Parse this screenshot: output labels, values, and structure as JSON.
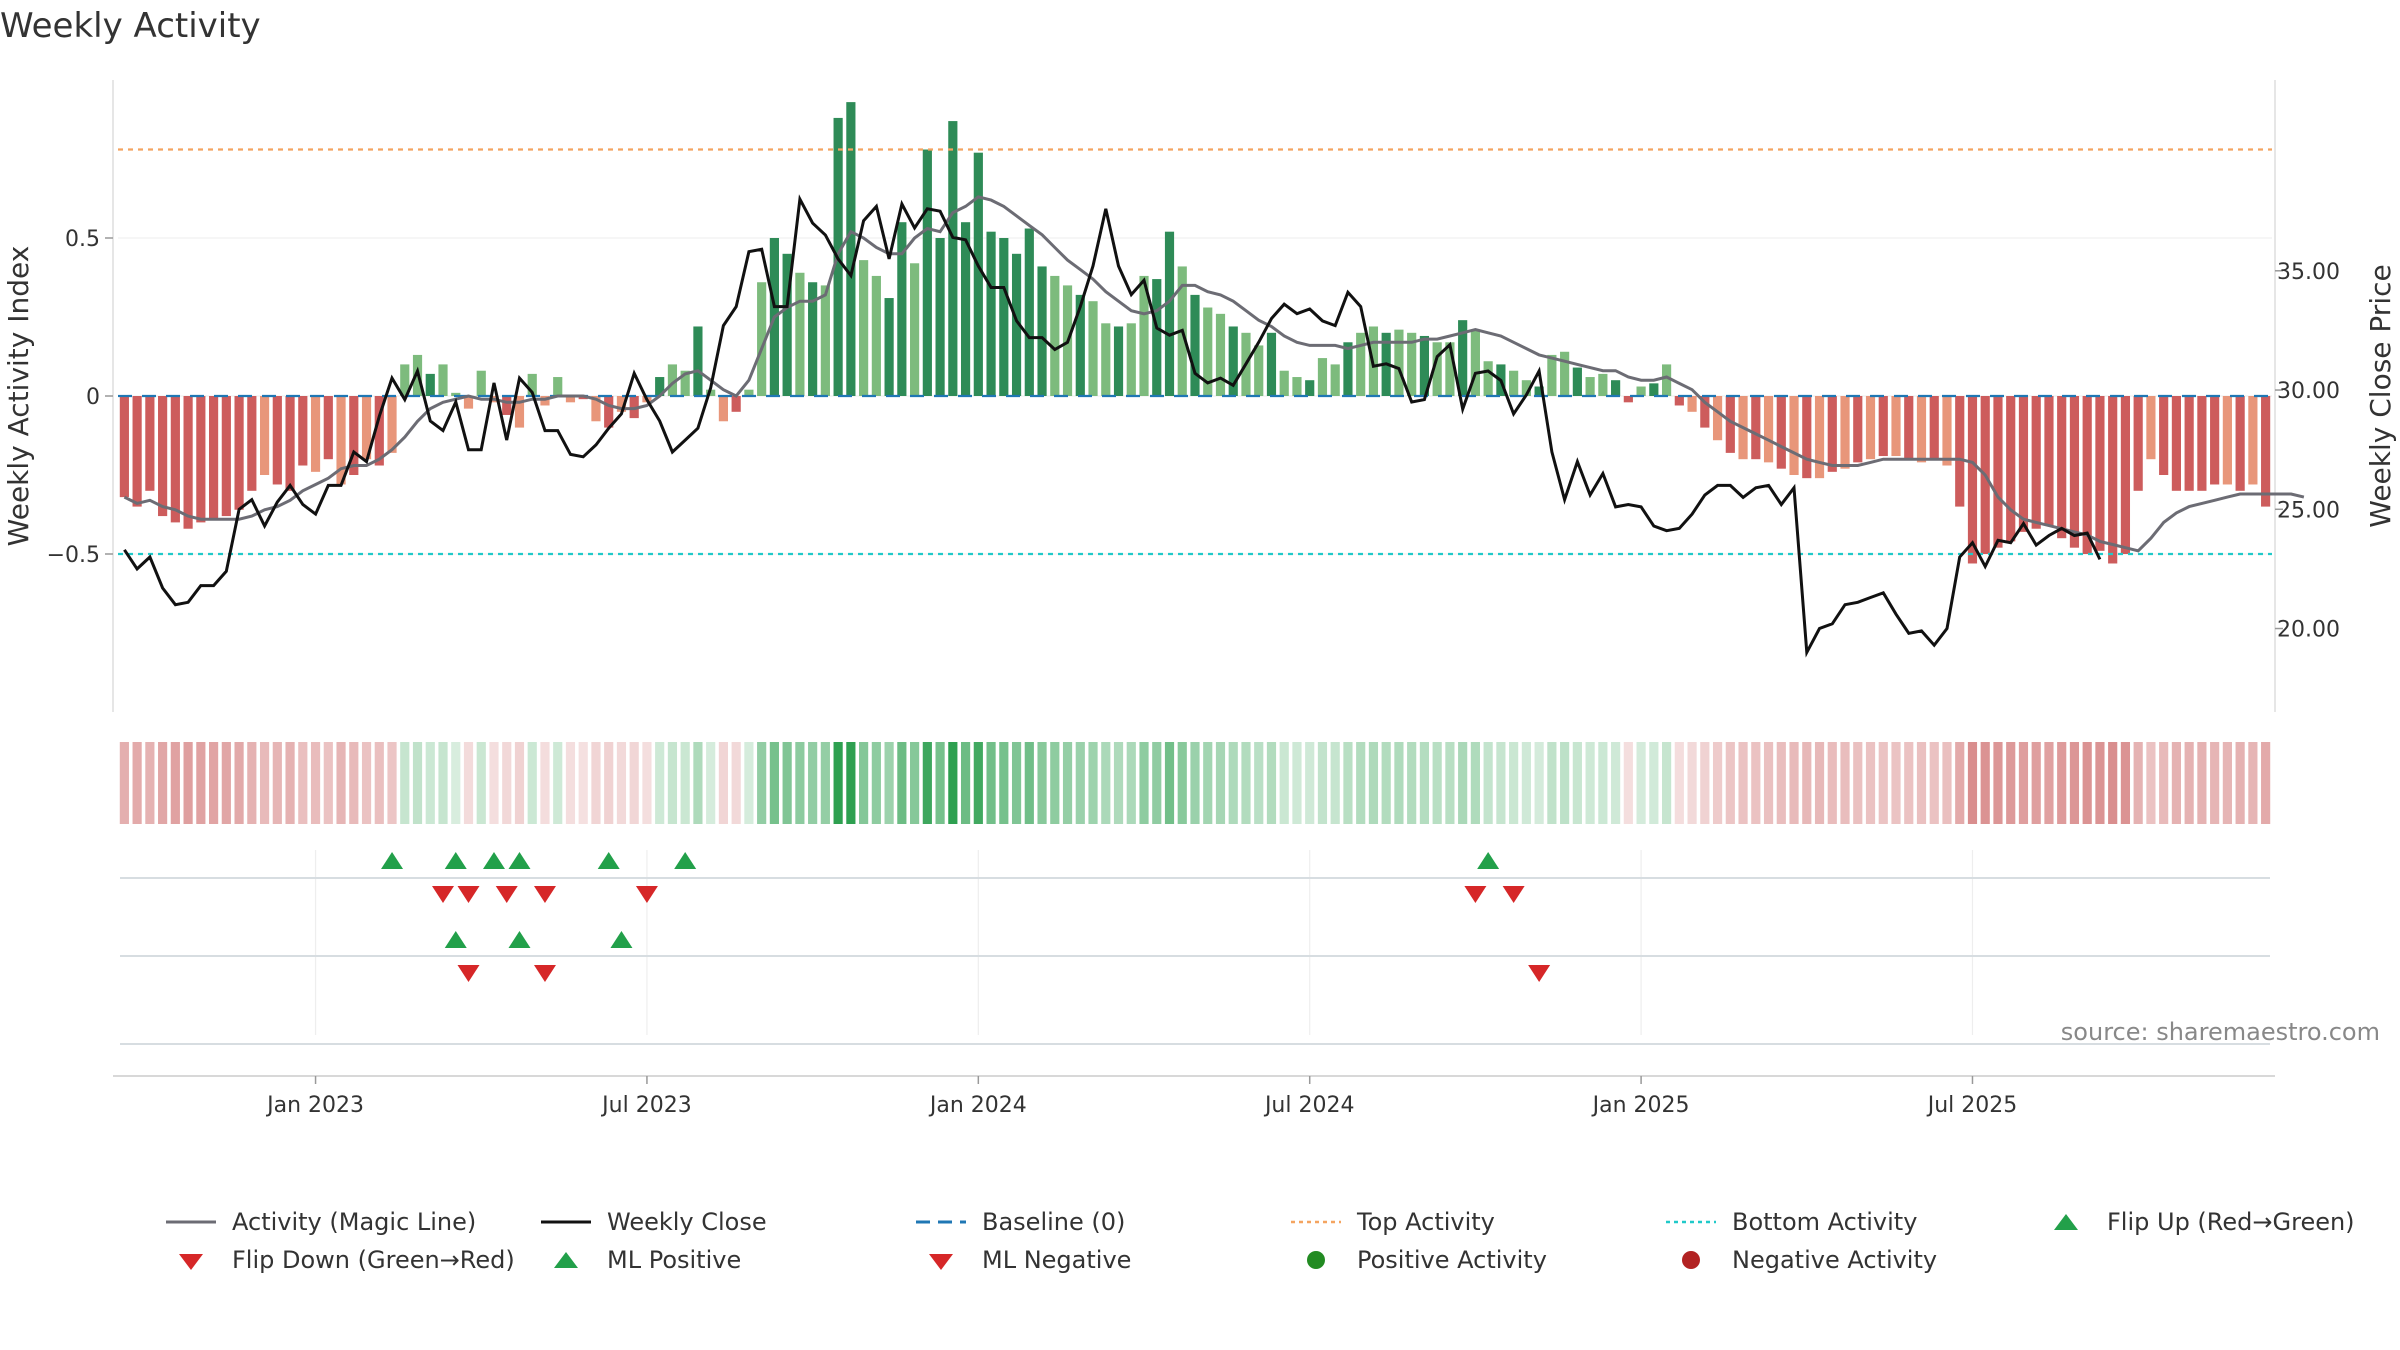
{
  "title": "Weekly Activity",
  "source": "source: sharemaestro.com",
  "chart_data": {
    "type": "bar",
    "title": "Weekly Activity",
    "ylabel_left": "Weekly Activity Index",
    "ylabel_right": "Weekly Close Price",
    "left_axis": {
      "ylim": [
        -1.0,
        1.0
      ],
      "ticks": [
        -0.5,
        0,
        0.5
      ],
      "tick_labels": [
        "−0.5",
        "0",
        "0.5"
      ]
    },
    "right_axis": {
      "ylim": [
        16.5,
        43.0
      ],
      "ticks": [
        20,
        25,
        30,
        35
      ],
      "tick_labels": [
        "20.00",
        "25.00",
        "30.00",
        "35.00"
      ]
    },
    "x_ticks": [
      {
        "label": "Jan 2023",
        "week": 15
      },
      {
        "label": "Jul 2023",
        "week": 41
      },
      {
        "label": "Jan 2024",
        "week": 67
      },
      {
        "label": "Jul 2024",
        "week": 93
      },
      {
        "label": "Jan 2025",
        "week": 119
      },
      {
        "label": "Jul 2025",
        "week": 145
      }
    ],
    "top_activity": 0.78,
    "bottom_activity": -0.5,
    "baseline": 0,
    "activity": [
      -0.32,
      -0.35,
      -0.3,
      -0.38,
      -0.4,
      -0.42,
      -0.4,
      -0.39,
      -0.38,
      -0.36,
      -0.3,
      -0.25,
      -0.28,
      -0.3,
      -0.22,
      -0.24,
      -0.2,
      -0.28,
      -0.25,
      -0.2,
      -0.22,
      -0.18,
      0.1,
      0.13,
      0.07,
      0.1,
      0.01,
      -0.04,
      0.08,
      -0.02,
      -0.06,
      -0.1,
      0.07,
      -0.03,
      0.06,
      -0.02,
      -0.01,
      -0.08,
      -0.1,
      -0.05,
      -0.07,
      -0.02,
      0.06,
      0.1,
      0.08,
      0.22,
      0.02,
      -0.08,
      -0.05,
      0.02,
      0.36,
      0.5,
      0.45,
      0.39,
      0.36,
      0.35,
      0.88,
      0.93,
      0.43,
      0.38,
      0.31,
      0.55,
      0.42,
      0.78,
      0.5,
      0.87,
      0.55,
      0.77,
      0.52,
      0.5,
      0.45,
      0.53,
      0.41,
      0.38,
      0.35,
      0.32,
      0.3,
      0.23,
      0.22,
      0.23,
      0.38,
      0.37,
      0.52,
      0.41,
      0.32,
      0.28,
      0.26,
      0.22,
      0.2,
      0.16,
      0.2,
      0.08,
      0.06,
      0.05,
      0.12,
      0.1,
      0.17,
      0.2,
      0.22,
      0.2,
      0.21,
      0.2,
      0.19,
      0.17,
      0.17,
      0.24,
      0.21,
      0.11,
      0.1,
      0.08,
      0.05,
      0.03,
      0.13,
      0.14,
      0.09,
      0.06,
      0.07,
      0.05,
      -0.02,
      0.03,
      0.04,
      0.1,
      -0.03,
      -0.05,
      -0.1,
      -0.14,
      -0.18,
      -0.2,
      -0.2,
      -0.21,
      -0.23,
      -0.25,
      -0.26,
      -0.26,
      -0.24,
      -0.23,
      -0.21,
      -0.2,
      -0.19,
      -0.19,
      -0.2,
      -0.21,
      -0.2,
      -0.22,
      -0.35,
      -0.53,
      -0.5,
      -0.48,
      -0.46,
      -0.43,
      -0.42,
      -0.41,
      -0.45,
      -0.48,
      -0.5,
      -0.49,
      -0.53,
      -0.5,
      -0.3,
      -0.2,
      -0.25,
      -0.3,
      -0.3,
      -0.3,
      -0.28,
      -0.28,
      -0.3,
      -0.28,
      -0.35
    ],
    "magic_line": [
      -0.32,
      -0.34,
      -0.33,
      -0.35,
      -0.36,
      -0.38,
      -0.39,
      -0.39,
      -0.39,
      -0.39,
      -0.38,
      -0.36,
      -0.35,
      -0.33,
      -0.3,
      -0.28,
      -0.26,
      -0.23,
      -0.22,
      -0.22,
      -0.2,
      -0.17,
      -0.13,
      -0.08,
      -0.04,
      -0.02,
      -0.01,
      0.0,
      -0.01,
      -0.01,
      -0.02,
      -0.02,
      -0.01,
      -0.01,
      0.0,
      0.0,
      0.0,
      -0.01,
      -0.03,
      -0.04,
      -0.04,
      -0.03,
      0.0,
      0.04,
      0.07,
      0.08,
      0.05,
      0.02,
      0.0,
      0.05,
      0.15,
      0.25,
      0.28,
      0.3,
      0.3,
      0.32,
      0.45,
      0.52,
      0.5,
      0.47,
      0.45,
      0.45,
      0.5,
      0.53,
      0.52,
      0.58,
      0.6,
      0.63,
      0.62,
      0.6,
      0.57,
      0.54,
      0.51,
      0.47,
      0.43,
      0.4,
      0.37,
      0.33,
      0.3,
      0.27,
      0.26,
      0.27,
      0.3,
      0.35,
      0.35,
      0.33,
      0.32,
      0.3,
      0.27,
      0.24,
      0.22,
      0.19,
      0.17,
      0.16,
      0.16,
      0.16,
      0.15,
      0.16,
      0.17,
      0.17,
      0.17,
      0.17,
      0.18,
      0.18,
      0.19,
      0.2,
      0.21,
      0.2,
      0.19,
      0.17,
      0.15,
      0.13,
      0.12,
      0.11,
      0.1,
      0.09,
      0.08,
      0.08,
      0.06,
      0.05,
      0.05,
      0.06,
      0.04,
      0.02,
      -0.02,
      -0.05,
      -0.08,
      -0.1,
      -0.12,
      -0.14,
      -0.16,
      -0.18,
      -0.2,
      -0.21,
      -0.22,
      -0.22,
      -0.22,
      -0.21,
      -0.2,
      -0.2,
      -0.2,
      -0.2,
      -0.2,
      -0.2,
      -0.2,
      -0.21,
      -0.25,
      -0.32,
      -0.36,
      -0.39,
      -0.4,
      -0.41,
      -0.42,
      -0.43,
      -0.44,
      -0.46,
      -0.47,
      -0.48,
      -0.49,
      -0.45,
      -0.4,
      -0.37,
      -0.35,
      -0.34,
      -0.33,
      -0.32,
      -0.31,
      -0.31,
      -0.31,
      -0.31,
      -0.31,
      -0.32
    ],
    "weekly_close": [
      23.3,
      22.5,
      23.0,
      21.7,
      21.0,
      21.1,
      21.8,
      21.8,
      22.4,
      25.0,
      25.4,
      24.3,
      25.3,
      26.0,
      25.2,
      24.8,
      26.0,
      26.0,
      27.4,
      27.0,
      28.9,
      30.5,
      29.6,
      30.8,
      28.7,
      28.3,
      29.5,
      27.5,
      27.5,
      30.3,
      27.9,
      30.5,
      29.9,
      28.3,
      28.3,
      27.3,
      27.2,
      27.7,
      28.4,
      29.0,
      30.7,
      29.6,
      28.7,
      27.4,
      27.9,
      28.4,
      30.1,
      32.7,
      33.5,
      35.8,
      35.9,
      33.5,
      33.5,
      38.0,
      37.0,
      36.5,
      35.5,
      34.8,
      37.1,
      37.7,
      35.5,
      37.8,
      36.8,
      37.6,
      37.5,
      36.4,
      36.3,
      35.2,
      34.3,
      34.3,
      32.9,
      32.2,
      32.2,
      31.7,
      32.0,
      33.5,
      35.2,
      37.6,
      35.2,
      34.0,
      34.6,
      32.6,
      32.3,
      32.5,
      30.7,
      30.3,
      30.5,
      30.2,
      31.1,
      32.0,
      33.0,
      33.6,
      33.2,
      33.4,
      32.9,
      32.7,
      34.1,
      33.5,
      31.0,
      31.1,
      30.9,
      29.5,
      29.6,
      31.4,
      31.9,
      29.2,
      30.7,
      30.8,
      30.4,
      29.0,
      29.8,
      30.8,
      27.4,
      25.4,
      27.0,
      25.6,
      26.5,
      25.1,
      25.2,
      25.1,
      24.3,
      24.1,
      24.2,
      24.8,
      25.6,
      26.0,
      26.0,
      25.5,
      25.9,
      26.0,
      25.2,
      25.9,
      19.0,
      20.0,
      20.2,
      21.0,
      21.1,
      21.3,
      21.5,
      20.6,
      19.8,
      19.9,
      19.3,
      20.0,
      23.0,
      23.6,
      22.6,
      23.7,
      23.6,
      24.4,
      23.5,
      23.9,
      24.2,
      23.9,
      24.0,
      22.9
    ],
    "flip_up_weeks": [
      21,
      26,
      29,
      31,
      38,
      44,
      107
    ],
    "flip_down_weeks": [
      25,
      27,
      30,
      33,
      41,
      106,
      109
    ],
    "ml_positive_weeks": [
      26,
      31,
      39
    ],
    "ml_negative_weeks": [
      27,
      33,
      111
    ],
    "legend": [
      "Activity (Magic Line)",
      "Weekly Close",
      "Baseline (0)",
      "Top Activity",
      "Bottom Activity",
      "Flip Up (Red→Green)",
      "Flip Down (Green→Red)",
      "ML Positive",
      "ML Negative",
      "Positive Activity",
      "Negative Activity"
    ]
  },
  "colors": {
    "pos_dark": "#2e8b57",
    "pos_light": "#7dbb7d",
    "neg_dark": "#cd5c5c",
    "neg_light": "#e8967a",
    "magic": "#6c6c74",
    "close": "#111111",
    "baseline": "#1f77b4",
    "top": "#f4a460",
    "bottom": "#20c9c9",
    "up": "#22a04a",
    "down": "#d62728",
    "pos_dot": "#228b22",
    "neg_dot": "#b22222"
  }
}
